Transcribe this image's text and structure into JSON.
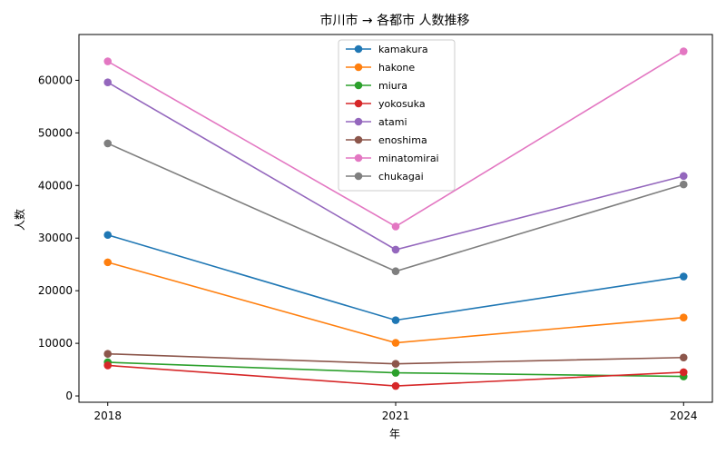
{
  "chart_data": {
    "type": "line",
    "title": "市川市 → 各都市 人数推移",
    "xlabel": "年",
    "ylabel": "人数",
    "x": [
      2018,
      2021,
      2024
    ],
    "x_tick_labels": [
      "2018",
      "2021",
      "2024"
    ],
    "y_ticks": [
      0,
      10000,
      20000,
      30000,
      40000,
      50000,
      60000
    ],
    "y_tick_labels": [
      "0",
      "10000",
      "20000",
      "30000",
      "40000",
      "50000",
      "60000"
    ],
    "xlim": [
      2017.7,
      2024.3
    ],
    "ylim": [
      -1200,
      68700
    ],
    "grid": false,
    "legend_position": "top-center",
    "series": [
      {
        "name": "kamakura",
        "color": "#1f77b4",
        "values": [
          30600,
          14400,
          22700
        ]
      },
      {
        "name": "hakone",
        "color": "#ff7f0e",
        "values": [
          25400,
          10100,
          14900
        ]
      },
      {
        "name": "miura",
        "color": "#2ca02c",
        "values": [
          6400,
          4400,
          3700
        ]
      },
      {
        "name": "yokosuka",
        "color": "#d62728",
        "values": [
          5800,
          1900,
          4500
        ]
      },
      {
        "name": "atami",
        "color": "#9467bd",
        "values": [
          59600,
          27800,
          41800
        ]
      },
      {
        "name": "enoshima",
        "color": "#8c564b",
        "values": [
          8000,
          6100,
          7300
        ]
      },
      {
        "name": "minatomirai",
        "color": "#e377c2",
        "values": [
          63600,
          32200,
          65500
        ]
      },
      {
        "name": "chukagai",
        "color": "#7f7f7f",
        "values": [
          48000,
          23700,
          40200
        ]
      }
    ]
  }
}
